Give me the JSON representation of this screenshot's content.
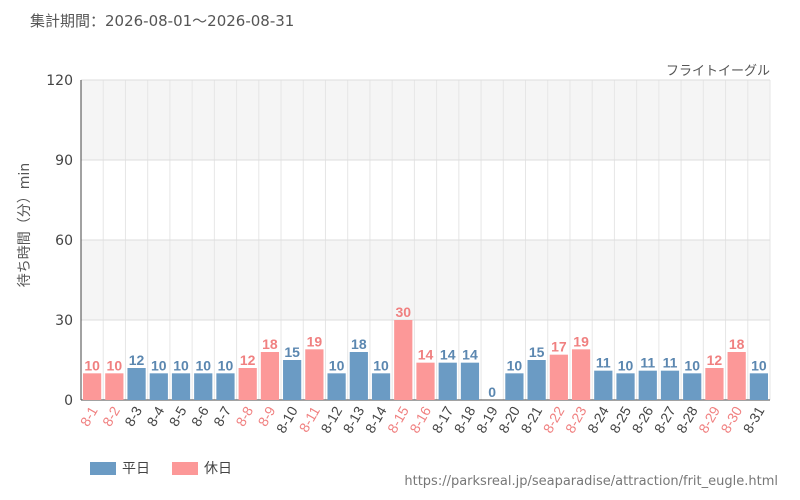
{
  "period_label": "集計期間：2026-08-01～2026-08-31",
  "attraction_name": "フライトイーグル",
  "source_url": "https://parksreal.jp/seaparadise/attraction/frit_eugle.html",
  "colors": {
    "weekday": "#6b9bc4",
    "holiday": "#fc9898",
    "weekday_text": "#5b87b0",
    "holiday_text": "#f08080"
  },
  "chart_data": {
    "type": "bar",
    "title": "",
    "xlabel": "",
    "ylabel": "待ち時間（分）min",
    "ylim": [
      0,
      120
    ],
    "yticks": [
      0,
      30,
      60,
      90,
      120
    ],
    "grid": true,
    "legend_position": "bottom-left",
    "legend": [
      {
        "key": "weekday",
        "label": "平日"
      },
      {
        "key": "holiday",
        "label": "休日"
      }
    ],
    "categories": [
      "8-1",
      "8-2",
      "8-3",
      "8-4",
      "8-5",
      "8-6",
      "8-7",
      "8-8",
      "8-9",
      "8-10",
      "8-11",
      "8-12",
      "8-13",
      "8-14",
      "8-15",
      "8-16",
      "8-17",
      "8-18",
      "8-19",
      "8-20",
      "8-21",
      "8-22",
      "8-23",
      "8-24",
      "8-25",
      "8-26",
      "8-27",
      "8-28",
      "8-29",
      "8-30",
      "8-31"
    ],
    "values": [
      10,
      10,
      12,
      10,
      10,
      10,
      10,
      12,
      18,
      15,
      19,
      10,
      18,
      10,
      30,
      14,
      14,
      14,
      0,
      10,
      15,
      17,
      19,
      11,
      10,
      11,
      11,
      10,
      12,
      18,
      10
    ],
    "day_type": [
      "holiday",
      "holiday",
      "weekday",
      "weekday",
      "weekday",
      "weekday",
      "weekday",
      "holiday",
      "holiday",
      "weekday",
      "holiday",
      "weekday",
      "weekday",
      "weekday",
      "holiday",
      "holiday",
      "weekday",
      "weekday",
      "weekday",
      "weekday",
      "weekday",
      "holiday",
      "holiday",
      "weekday",
      "weekday",
      "weekday",
      "weekday",
      "weekday",
      "holiday",
      "holiday",
      "weekday"
    ]
  }
}
